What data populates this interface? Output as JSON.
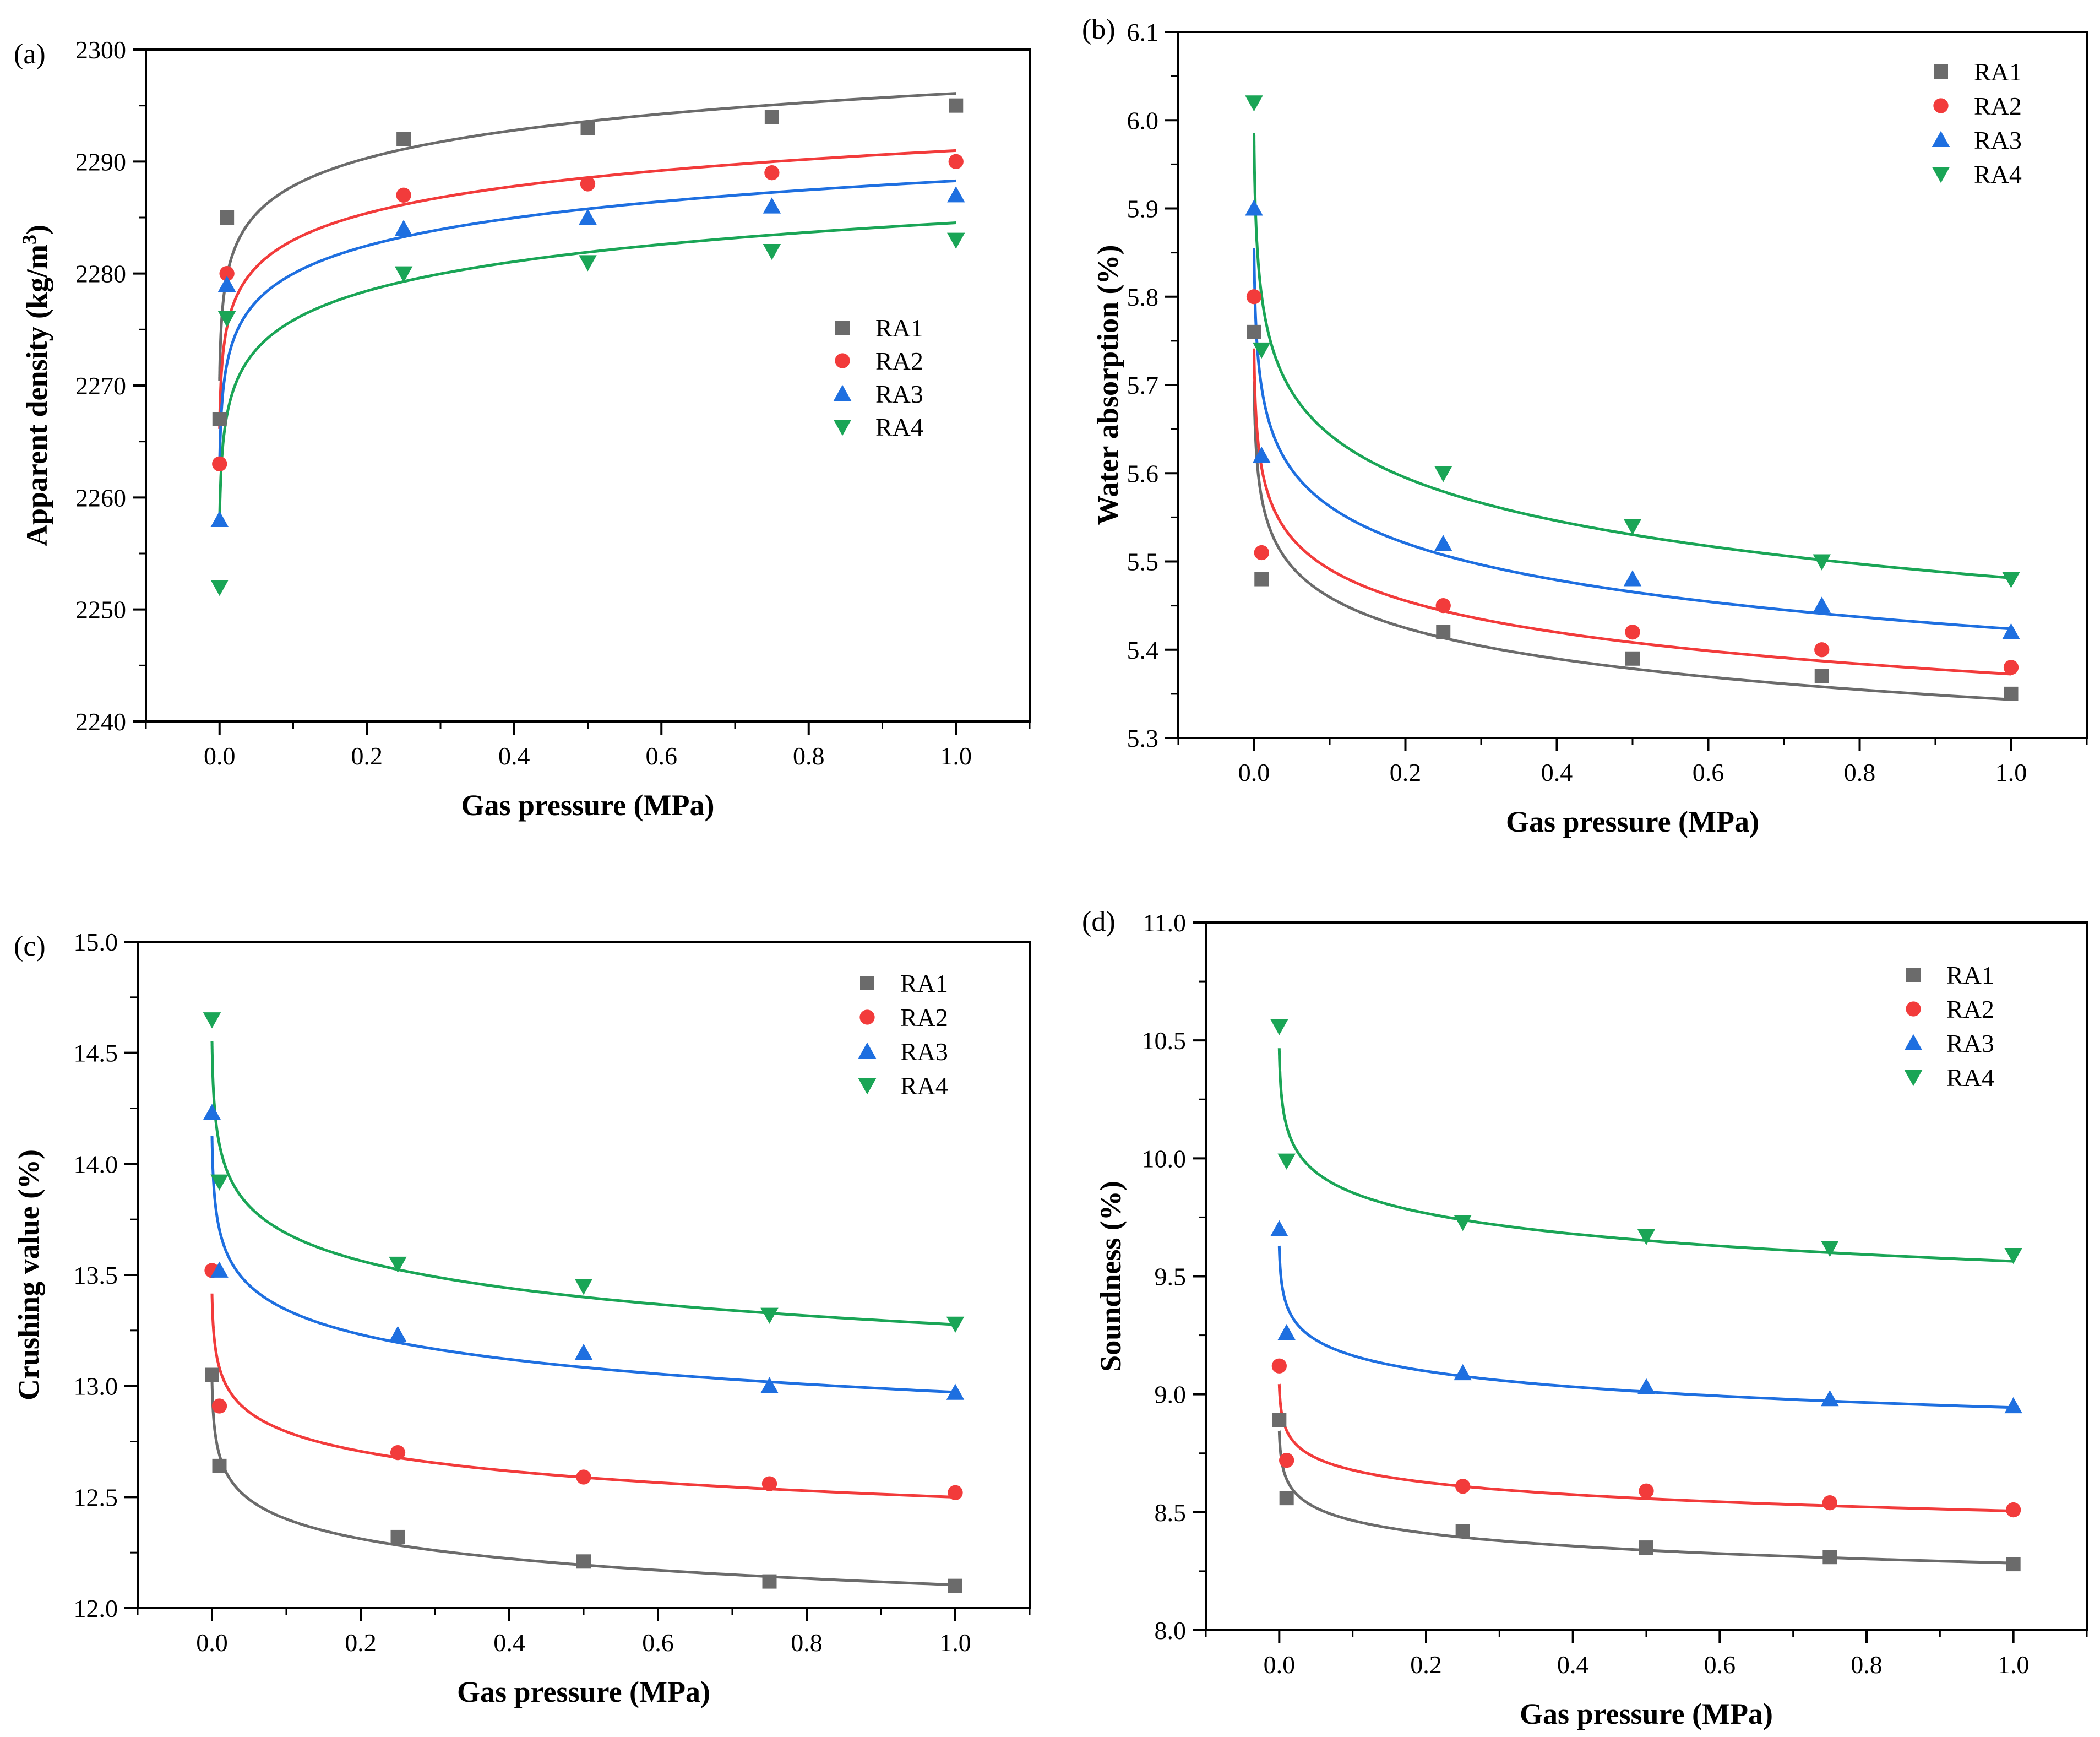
{
  "colors": {
    "RA1": "#6b6b6b",
    "RA2": "#f23b3b",
    "RA3": "#1e6fe0",
    "RA4": "#1aa556"
  },
  "chart_data": [
    {
      "id": "a",
      "panel_label": "(a)",
      "type": "scatter",
      "title": "",
      "xlabel": "Gas pressure (MPa)",
      "ylabel": "Apparent density (kg/m",
      "ylabel_sup": "3",
      "ylabel_end": ")",
      "xlim": [
        -0.1,
        1.1
      ],
      "ylim": [
        2240,
        2300
      ],
      "xticks": [
        0.0,
        0.2,
        0.4,
        0.6,
        0.8,
        1.0
      ],
      "xtick_labels": [
        "0.0",
        "0.2",
        "0.4",
        "0.6",
        "0.8",
        "1.0"
      ],
      "yticks": [
        2240,
        2250,
        2260,
        2270,
        2280,
        2290,
        2300
      ],
      "ytick_labels": [
        "2240",
        "2250",
        "2260",
        "2270",
        "2280",
        "2290",
        "2300"
      ],
      "legend_position": "center-right",
      "fit": "log-increasing",
      "series": [
        {
          "name": "RA1",
          "marker": "square",
          "x": [
            0,
            0.01,
            0.25,
            0.5,
            0.75,
            1.0
          ],
          "y": [
            2267,
            2285,
            2292,
            2293,
            2294,
            2295
          ]
        },
        {
          "name": "RA2",
          "marker": "circle",
          "x": [
            0,
            0.01,
            0.25,
            0.5,
            0.75,
            1.0
          ],
          "y": [
            2263,
            2280,
            2287,
            2288,
            2289,
            2290
          ]
        },
        {
          "name": "RA3",
          "marker": "triangle-up",
          "x": [
            0,
            0.01,
            0.25,
            0.5,
            0.75,
            1.0
          ],
          "y": [
            2258,
            2279,
            2284,
            2285,
            2286,
            2287
          ]
        },
        {
          "name": "RA4",
          "marker": "triangle-down",
          "x": [
            0,
            0.01,
            0.25,
            0.5,
            0.75,
            1.0
          ],
          "y": [
            2252,
            2276,
            2280,
            2281,
            2282,
            2283
          ]
        }
      ]
    },
    {
      "id": "b",
      "panel_label": "(b)",
      "type": "scatter",
      "title": "",
      "xlabel": "Gas pressure (MPa)",
      "ylabel": "Water absorption (%)",
      "xlim": [
        -0.1,
        1.1
      ],
      "ylim": [
        5.3,
        6.1
      ],
      "xticks": [
        0.0,
        0.2,
        0.4,
        0.6,
        0.8,
        1.0
      ],
      "xtick_labels": [
        "0.0",
        "0.2",
        "0.4",
        "0.6",
        "0.8",
        "1.0"
      ],
      "yticks": [
        5.3,
        5.4,
        5.5,
        5.6,
        5.7,
        5.8,
        5.9,
        6.0,
        6.1
      ],
      "ytick_labels": [
        "5.3",
        "5.4",
        "5.5",
        "5.6",
        "5.7",
        "5.8",
        "5.9",
        "6.0",
        "6.1"
      ],
      "legend_position": "top-right",
      "fit": "log-decreasing",
      "series": [
        {
          "name": "RA1",
          "marker": "square",
          "x": [
            0,
            0.01,
            0.25,
            0.5,
            0.75,
            1.0
          ],
          "y": [
            5.76,
            5.48,
            5.42,
            5.39,
            5.37,
            5.35
          ]
        },
        {
          "name": "RA2",
          "marker": "circle",
          "x": [
            0,
            0.01,
            0.25,
            0.5,
            0.75,
            1.0
          ],
          "y": [
            5.8,
            5.51,
            5.45,
            5.42,
            5.4,
            5.38
          ]
        },
        {
          "name": "RA3",
          "marker": "triangle-up",
          "x": [
            0,
            0.01,
            0.25,
            0.5,
            0.75,
            1.0
          ],
          "y": [
            5.9,
            5.62,
            5.52,
            5.48,
            5.45,
            5.42
          ]
        },
        {
          "name": "RA4",
          "marker": "triangle-down",
          "x": [
            0,
            0.01,
            0.25,
            0.5,
            0.75,
            1.0
          ],
          "y": [
            6.02,
            5.74,
            5.6,
            5.54,
            5.5,
            5.48
          ]
        }
      ]
    },
    {
      "id": "c",
      "panel_label": "(c)",
      "type": "scatter",
      "title": "",
      "xlabel": "Gas pressure (MPa)",
      "ylabel": "Crushing value (%)",
      "xlim": [
        -0.1,
        1.1
      ],
      "ylim": [
        12.0,
        15.0
      ],
      "xticks": [
        0.0,
        0.2,
        0.4,
        0.6,
        0.8,
        1.0
      ],
      "xtick_labels": [
        "0.0",
        "0.2",
        "0.4",
        "0.6",
        "0.8",
        "1.0"
      ],
      "yticks": [
        12.0,
        12.5,
        13.0,
        13.5,
        14.0,
        14.5,
        15.0
      ],
      "ytick_labels": [
        "12.0",
        "12.5",
        "13.0",
        "13.5",
        "14.0",
        "14.5",
        "15.0"
      ],
      "legend_position": "top-right",
      "fit": "log-decreasing",
      "series": [
        {
          "name": "RA1",
          "marker": "square",
          "x": [
            0,
            0.01,
            0.25,
            0.5,
            0.75,
            1.0
          ],
          "y": [
            13.05,
            12.64,
            12.32,
            12.21,
            12.12,
            12.1
          ]
        },
        {
          "name": "RA2",
          "marker": "circle",
          "x": [
            0,
            0.01,
            0.25,
            0.5,
            0.75,
            1.0
          ],
          "y": [
            13.52,
            12.91,
            12.7,
            12.59,
            12.56,
            12.52
          ]
        },
        {
          "name": "RA3",
          "marker": "triangle-up",
          "x": [
            0,
            0.01,
            0.25,
            0.5,
            0.75,
            1.0
          ],
          "y": [
            14.23,
            13.52,
            13.23,
            13.15,
            13.0,
            12.97
          ]
        },
        {
          "name": "RA4",
          "marker": "triangle-down",
          "x": [
            0,
            0.01,
            0.25,
            0.5,
            0.75,
            1.0
          ],
          "y": [
            14.65,
            13.92,
            13.55,
            13.45,
            13.32,
            13.28
          ]
        }
      ]
    },
    {
      "id": "d",
      "panel_label": "(d)",
      "type": "scatter",
      "title": "",
      "xlabel": "Gas pressure (MPa)",
      "ylabel": "Soundness (%)",
      "xlim": [
        -0.1,
        1.1
      ],
      "ylim": [
        8.0,
        11.0
      ],
      "xticks": [
        0.0,
        0.2,
        0.4,
        0.6,
        0.8,
        1.0
      ],
      "xtick_labels": [
        "0.0",
        "0.2",
        "0.4",
        "0.6",
        "0.8",
        "1.0"
      ],
      "yticks": [
        8.0,
        8.5,
        9.0,
        9.5,
        10.0,
        10.5,
        11.0
      ],
      "ytick_labels": [
        "8.0",
        "8.5",
        "9.0",
        "9.5",
        "10.0",
        "10.5",
        "11.0"
      ],
      "legend_position": "top-right",
      "fit": "log-decreasing",
      "series": [
        {
          "name": "RA1",
          "marker": "square",
          "x": [
            0,
            0.01,
            0.25,
            0.5,
            0.75,
            1.0
          ],
          "y": [
            8.89,
            8.56,
            8.42,
            8.35,
            8.31,
            8.28
          ]
        },
        {
          "name": "RA2",
          "marker": "circle",
          "x": [
            0,
            0.01,
            0.25,
            0.5,
            0.75,
            1.0
          ],
          "y": [
            9.12,
            8.72,
            8.61,
            8.59,
            8.54,
            8.51
          ]
        },
        {
          "name": "RA3",
          "marker": "triangle-up",
          "x": [
            0,
            0.01,
            0.25,
            0.5,
            0.75,
            1.0
          ],
          "y": [
            9.7,
            9.26,
            9.09,
            9.03,
            8.98,
            8.95
          ]
        },
        {
          "name": "RA4",
          "marker": "triangle-down",
          "x": [
            0,
            0.01,
            0.25,
            0.5,
            0.75,
            1.0
          ],
          "y": [
            10.56,
            9.99,
            9.73,
            9.67,
            9.62,
            9.59
          ]
        }
      ]
    }
  ]
}
